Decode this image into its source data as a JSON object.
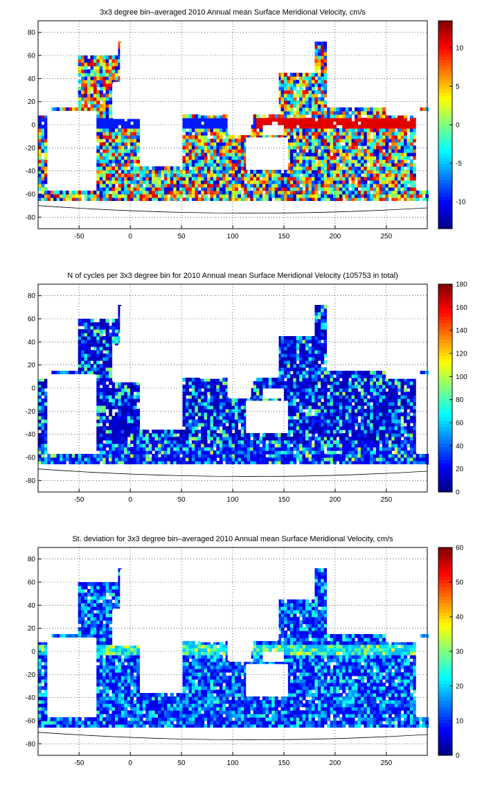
{
  "chart_data": [
    {
      "type": "heatmap",
      "title": "3x3 degree bin–averaged 2010 Annual mean Surface Meridional Velocity, cm/s",
      "xlim": [
        -90,
        290
      ],
      "ylim": [
        -90,
        90
      ],
      "x_ticks": [
        "-50",
        "0",
        "50",
        "100",
        "150",
        "200",
        "250"
      ],
      "y_ticks": [
        "80",
        "60",
        "40",
        "20",
        "0",
        "-20",
        "-40",
        "-60",
        "-80"
      ],
      "grid": true,
      "colormap": "jet",
      "colorbar": {
        "min": -13.5,
        "max": 13.5,
        "ticks": [
          "10",
          "5",
          "0",
          "-5",
          "-10"
        ]
      },
      "bin_size_deg": 3
    },
    {
      "type": "heatmap",
      "title": "N of cycles per 3x3 degree bin for 2010 Annual mean Surface Meridional Velocity (105753 in total)",
      "xlim": [
        -90,
        290
      ],
      "ylim": [
        -90,
        90
      ],
      "x_ticks": [
        "-50",
        "0",
        "50",
        "100",
        "150",
        "200",
        "250"
      ],
      "y_ticks": [
        "80",
        "60",
        "40",
        "20",
        "0",
        "-20",
        "-40",
        "-60",
        "-80"
      ],
      "grid": true,
      "colormap": "jet",
      "colorbar": {
        "min": 0,
        "max": 180,
        "ticks": [
          "180",
          "160",
          "140",
          "120",
          "100",
          "80",
          "60",
          "40",
          "20",
          "0"
        ]
      },
      "bin_size_deg": 3
    },
    {
      "type": "heatmap",
      "title": "St. deviation for 3x3 degree bin–averaged 2010 Annual mean Surface Meridional Velocity, cm/s",
      "xlim": [
        -90,
        290
      ],
      "ylim": [
        -90,
        90
      ],
      "x_ticks": [
        "-50",
        "0",
        "50",
        "100",
        "150",
        "200",
        "250"
      ],
      "y_ticks": [
        "80",
        "60",
        "40",
        "20",
        "0",
        "-20",
        "-40",
        "-60",
        "-80"
      ],
      "grid": true,
      "colormap": "jet",
      "colorbar": {
        "min": 0,
        "max": 60,
        "ticks": [
          "60",
          "50",
          "40",
          "30",
          "20",
          "10",
          "0"
        ]
      },
      "bin_size_deg": 3
    }
  ]
}
